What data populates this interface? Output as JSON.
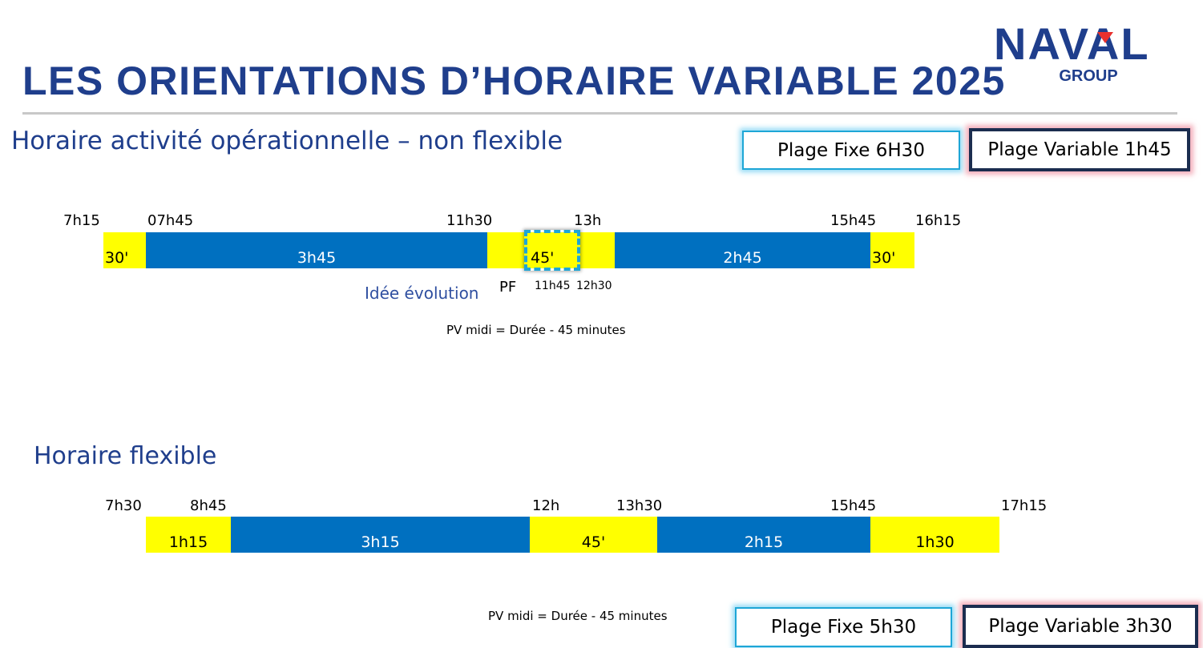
{
  "header": {
    "title": "LES ORIENTATIONS D’HORAIRE VARIABLE 2025",
    "logo": {
      "word": "NAVAL",
      "sub": "GROUP",
      "accent_color": "#e8302e",
      "brand_color": "#1f3e8c"
    }
  },
  "colors": {
    "yellow": "#ffff00",
    "blue": "#0070c0",
    "title_blue": "#1f3e8c",
    "box_cyan": "#1ea6d6",
    "box_navy": "#1b2d4f"
  },
  "section1": {
    "title": "Horaire activité opérationnelle – non flexible",
    "plage_fixe": "Plage Fixe 6H30",
    "plage_variable": "Plage Variable 1h45",
    "ticks": [
      "7h15",
      "07h45",
      "11h30",
      "13h",
      "15h45",
      "16h15"
    ],
    "segments": [
      "30'",
      "3h45",
      "45'",
      "2h45",
      "30'"
    ],
    "pf_label": "PF",
    "sub_times": [
      "11h45",
      "12h30"
    ],
    "idea_label": "Idée évolution",
    "note": "PV midi = Durée - 45 minutes"
  },
  "section2": {
    "title": "Horaire flexible",
    "ticks": [
      "7h30",
      "8h45",
      "12h",
      "13h30",
      "15h45",
      "17h15"
    ],
    "segments": [
      "1h15",
      "3h15",
      "45'",
      "2h15",
      "1h30"
    ],
    "note": "PV midi = Durée - 45 minutes",
    "plage_fixe": "Plage Fixe 5h30",
    "plage_variable": "Plage Variable 3h30"
  }
}
